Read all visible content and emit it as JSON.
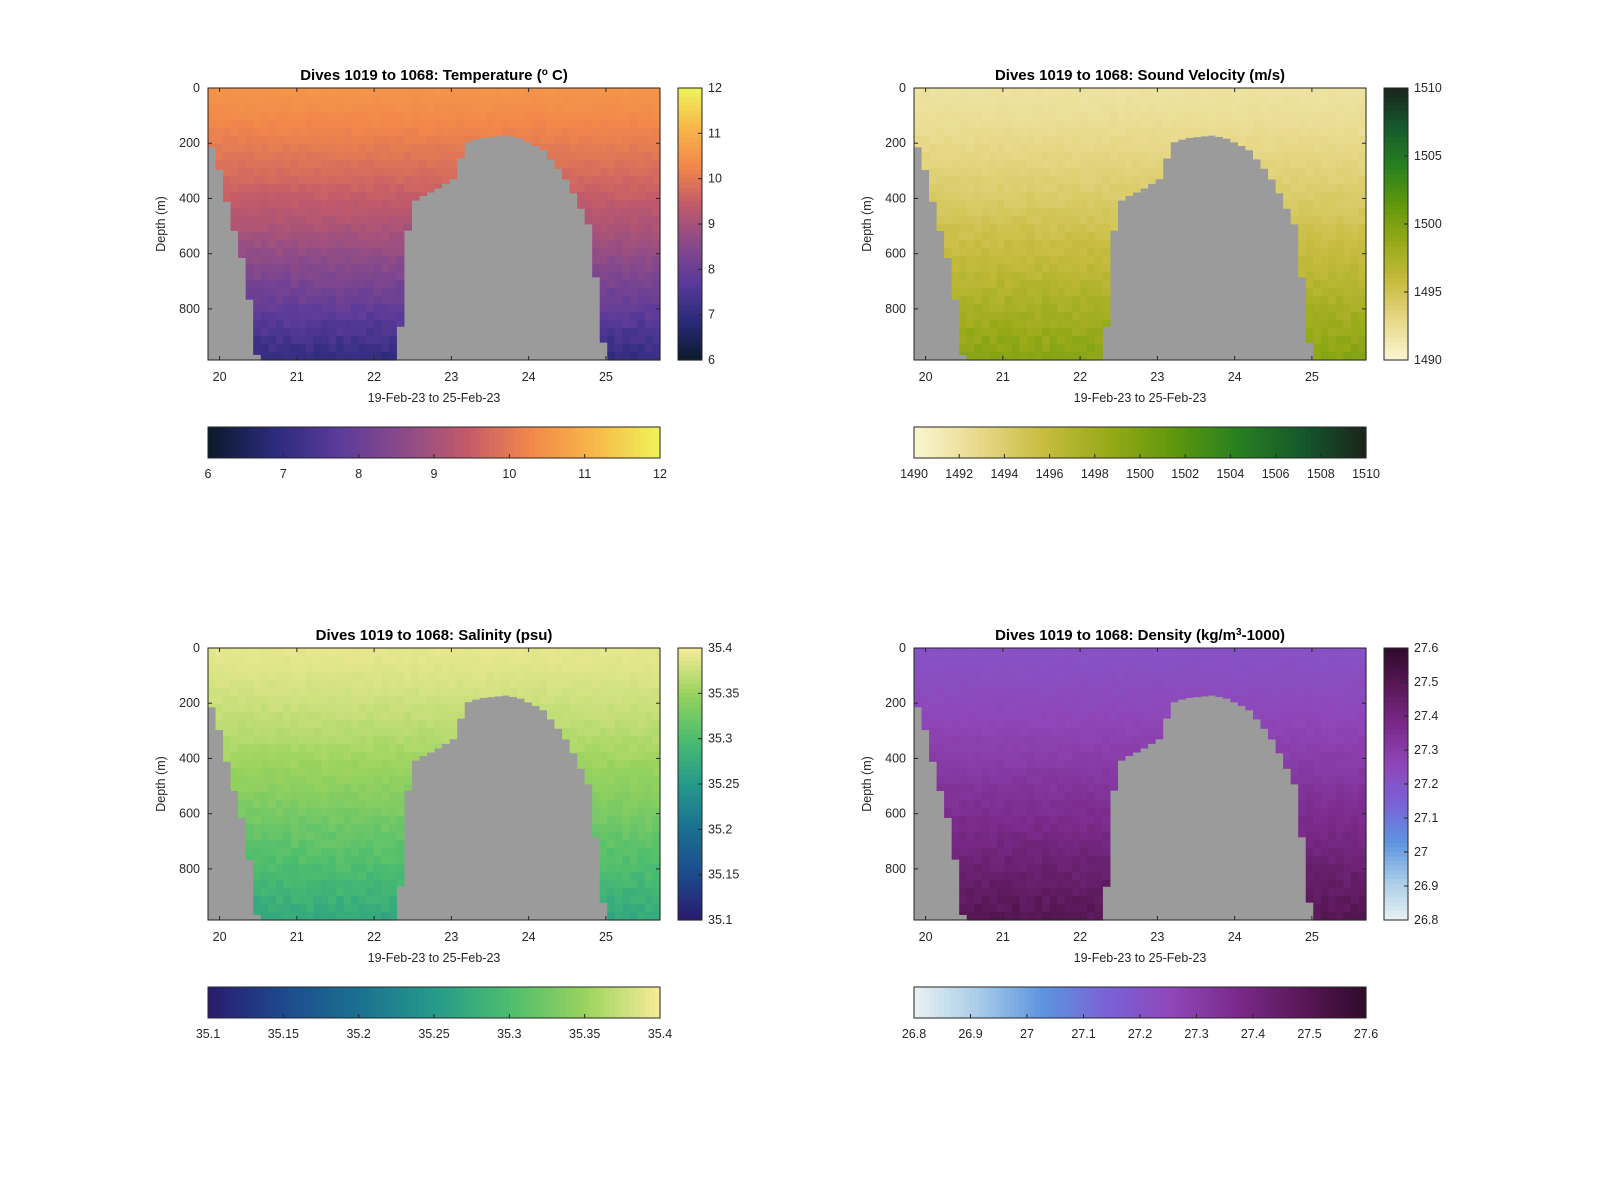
{
  "chart_data": [
    {
      "type": "heatmap",
      "variable": "temperature",
      "title": "Dives 1019 to 1068: Temperature (° C)",
      "title_parts": {
        "pre": "Dives 1019 to 1068: Temperature (",
        "sup": "o",
        "post": " C)"
      },
      "xlabel": "19-Feb-23 to 25-Feb-23",
      "ylabel": "Depth (m)",
      "x_ticks": [
        "20",
        "21",
        "22",
        "23",
        "24",
        "25"
      ],
      "y_ticks": [
        "0",
        "200",
        "400",
        "600",
        "800"
      ],
      "xlim": [
        19.85,
        25.7
      ],
      "ylim": [
        0,
        985
      ],
      "y_reversed": true,
      "colormap": [
        "#0a1a2a",
        "#2a2a7a",
        "#5a3a9a",
        "#8a4a8a",
        "#c25a6a",
        "#f2884a",
        "#f8b84a",
        "#eef45a"
      ],
      "value_range": [
        6,
        12
      ],
      "surface_value": 10.5,
      "deep_value": 7.0,
      "vertical_colorbar_ticks": [
        "6",
        "7",
        "8",
        "9",
        "10",
        "11",
        "12"
      ],
      "horizontal_colorbar_ticks": [
        "6",
        "7",
        "8",
        "9",
        "10",
        "11",
        "12"
      ]
    },
    {
      "type": "heatmap",
      "variable": "sound_velocity",
      "title": "Dives 1019 to 1068: Sound Velocity (m/s)",
      "title_parts": {
        "pre": "Dives 1019 to 1068: Sound Velocity (m/s)",
        "sup": "",
        "post": ""
      },
      "xlabel": "19-Feb-23 to 25-Feb-23",
      "ylabel": "Depth (m)",
      "x_ticks": [
        "20",
        "21",
        "22",
        "23",
        "24",
        "25"
      ],
      "y_ticks": [
        "0",
        "200",
        "400",
        "600",
        "800"
      ],
      "xlim": [
        19.85,
        25.7
      ],
      "ylim": [
        0,
        985
      ],
      "y_reversed": true,
      "colormap": [
        "#fbf6d2",
        "#e8d98a",
        "#c8bc40",
        "#98aa18",
        "#60980c",
        "#288020",
        "#16582c",
        "#1a241c"
      ],
      "value_range": [
        1490,
        1510
      ],
      "surface_value": 1492,
      "deep_value": 1499.5,
      "vertical_colorbar_ticks": [
        "1490",
        "1495",
        "1500",
        "1505",
        "1510"
      ],
      "horizontal_colorbar_ticks": [
        "1490",
        "1492",
        "1494",
        "1496",
        "1498",
        "1500",
        "1502",
        "1504",
        "1506",
        "1508",
        "1510"
      ]
    },
    {
      "type": "heatmap",
      "variable": "salinity",
      "title": "Dives 1019 to 1068: Salinity (psu)",
      "title_parts": {
        "pre": "Dives 1019 to 1068: Salinity (psu)",
        "sup": "",
        "post": ""
      },
      "xlabel": "19-Feb-23 to 25-Feb-23",
      "ylabel": "Depth (m)",
      "x_ticks": [
        "20",
        "21",
        "22",
        "23",
        "24",
        "25"
      ],
      "y_ticks": [
        "0",
        "200",
        "400",
        "600",
        "800"
      ],
      "xlim": [
        19.85,
        25.7
      ],
      "ylim": [
        0,
        985
      ],
      "y_reversed": true,
      "colormap": [
        "#2a1a6e",
        "#1d4a8e",
        "#1a7090",
        "#259a8a",
        "#4cbd6e",
        "#9ad35e",
        "#f8ec98"
      ],
      "value_range": [
        35.1,
        35.4
      ],
      "surface_value": 35.39,
      "deep_value": 35.27,
      "vertical_colorbar_ticks": [
        "35.1",
        "35.15",
        "35.2",
        "35.25",
        "35.3",
        "35.35",
        "35.4"
      ],
      "horizontal_colorbar_ticks": [
        "35.1",
        "35.15",
        "35.2",
        "35.25",
        "35.3",
        "35.35",
        "35.4"
      ]
    },
    {
      "type": "heatmap",
      "variable": "density",
      "title": "Dives 1019 to 1068: Density (kg/m³-1000)",
      "title_parts": {
        "pre": "Dives 1019 to 1068: Density (kg/m",
        "sup": "3",
        "post": "-1000)"
      },
      "xlabel": "19-Feb-23 to 25-Feb-23",
      "ylabel": "Depth (m)",
      "x_ticks": [
        "20",
        "21",
        "22",
        "23",
        "24",
        "25"
      ],
      "y_ticks": [
        "0",
        "200",
        "400",
        "600",
        "800"
      ],
      "xlim": [
        19.85,
        25.7
      ],
      "ylim": [
        0,
        985
      ],
      "y_reversed": true,
      "colormap": [
        "#e8f2f2",
        "#a8cce8",
        "#5d94e0",
        "#7a62d6",
        "#8f46b8",
        "#7a2a8a",
        "#5a1858",
        "#2e0a2a"
      ],
      "value_range": [
        26.8,
        27.6
      ],
      "surface_value": 27.21,
      "deep_value": 27.5,
      "vertical_colorbar_ticks": [
        "26.8",
        "26.9",
        "27",
        "27.1",
        "27.2",
        "27.3",
        "27.4",
        "27.5",
        "27.6"
      ],
      "horizontal_colorbar_ticks": [
        "26.8",
        "26.9",
        "27",
        "27.1",
        "27.2",
        "27.3",
        "27.4",
        "27.5",
        "27.6"
      ]
    }
  ],
  "colors": {
    "no_data": "#9b9b9b",
    "axis": "#262626"
  }
}
